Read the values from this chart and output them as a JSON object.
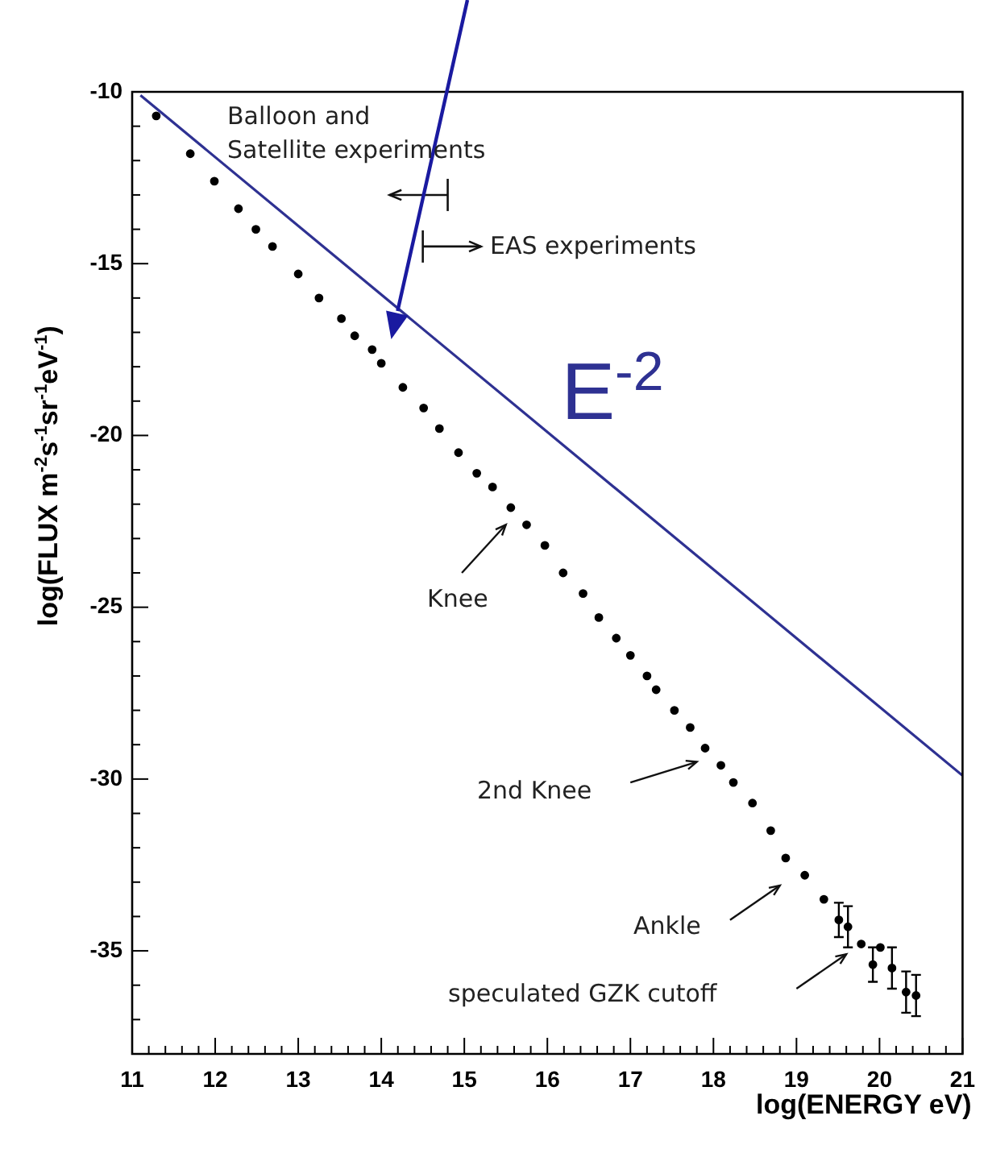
{
  "chart_data": {
    "type": "scatter",
    "xlabel": "log(ENERGY  eV)",
    "ylabel": "log(FLUX  m$^{-2}$s$^{-1}$sr$^{-1}$eV$^{-1}$)",
    "xlim": [
      11,
      21
    ],
    "ylim": [
      -38,
      -10
    ],
    "xticks": [
      11,
      {
        "value": 11.2,
        "label": null
      },
      {
        "value": 11.4,
        "label": null
      },
      {
        "value": 11.6,
        "label": null
      },
      {
        "value": 11.8,
        "label": null
      },
      12,
      {
        "value": 12.2,
        "label": null
      },
      {
        "value": 12.4,
        "label": null
      },
      {
        "value": 12.6,
        "label": null
      },
      {
        "value": 12.8,
        "label": null
      },
      13,
      {
        "value": 13.2,
        "label": null
      },
      {
        "value": 13.4,
        "label": null
      },
      {
        "value": 13.6,
        "label": null
      },
      {
        "value": 13.8,
        "label": null
      },
      14,
      {
        "value": 14.2,
        "label": null
      },
      {
        "value": 14.4,
        "label": null
      },
      {
        "value": 14.6,
        "label": null
      },
      {
        "value": 14.8,
        "label": null
      },
      15,
      {
        "value": 15.2,
        "label": null
      },
      {
        "value": 15.4,
        "label": null
      },
      {
        "value": 15.6,
        "label": null
      },
      {
        "value": 15.8,
        "label": null
      },
      16,
      {
        "value": 16.2,
        "label": null
      },
      {
        "value": 16.4,
        "label": null
      },
      {
        "value": 16.6,
        "label": null
      },
      {
        "value": 16.8,
        "label": null
      },
      17,
      {
        "value": 17.2,
        "label": null
      },
      {
        "value": 17.4,
        "label": null
      },
      {
        "value": 17.6,
        "label": null
      },
      {
        "value": 17.8,
        "label": null
      },
      18,
      {
        "value": 18.2,
        "label": null
      },
      {
        "value": 18.4,
        "label": null
      },
      {
        "value": 18.6,
        "label": null
      },
      {
        "value": 18.8,
        "label": null
      },
      19,
      {
        "value": 19.2,
        "label": null
      },
      {
        "value": 19.4,
        "label": null
      },
      {
        "value": 19.6,
        "label": null
      },
      {
        "value": 19.8,
        "label": null
      },
      20,
      {
        "value": 20.2,
        "label": null
      },
      {
        "value": 20.4,
        "label": null
      },
      {
        "value": 20.6,
        "label": null
      },
      {
        "value": 20.8,
        "label": null
      },
      21
    ],
    "yticks": [
      {
        "value": -37,
        "label": null
      },
      {
        "value": -36,
        "label": null
      },
      -35,
      {
        "value": -34,
        "label": null
      },
      {
        "value": -33,
        "label": null
      },
      {
        "value": -32,
        "label": null
      },
      {
        "value": -31,
        "label": null
      },
      -30,
      {
        "value": -29,
        "label": null
      },
      {
        "value": -28,
        "label": null
      },
      {
        "value": -27,
        "label": null
      },
      {
        "value": -26,
        "label": null
      },
      -25,
      {
        "value": -24,
        "label": null
      },
      {
        "value": -23,
        "label": null
      },
      {
        "value": -22,
        "label": null
      },
      {
        "value": -21,
        "label": null
      },
      -20,
      {
        "value": -19,
        "label": null
      },
      {
        "value": -18,
        "label": null
      },
      {
        "value": -17,
        "label": null
      },
      {
        "value": -16,
        "label": null
      },
      -15,
      {
        "value": -14,
        "label": null
      },
      {
        "value": -13,
        "label": null
      },
      {
        "value": -12,
        "label": null
      },
      {
        "value": -11,
        "label": null
      },
      -10
    ],
    "legend": false,
    "series": [
      {
        "color": "#000000",
        "marker": "circle",
        "x": [
          11.29,
          11.7,
          11.99,
          12.28,
          12.49,
          12.69,
          13.0,
          13.25,
          13.52,
          13.68,
          13.89,
          14.0,
          14.26,
          14.51,
          14.7,
          14.93,
          15.15,
          15.34,
          15.56,
          15.75,
          15.97,
          16.19,
          16.43,
          16.62,
          16.83,
          17.0,
          17.2,
          17.31,
          17.53,
          17.72,
          17.9,
          18.09,
          18.24,
          18.47,
          18.69,
          18.87,
          19.1,
          19.33,
          19.51,
          19.62,
          19.78,
          19.92,
          20.01,
          20.15,
          20.32,
          20.44
        ],
        "values": [
          -10.7,
          -11.8,
          -12.6,
          -13.4,
          -14.0,
          -14.5,
          -15.3,
          -16.0,
          -16.6,
          -17.1,
          -17.5,
          -17.9,
          -18.6,
          -19.2,
          -19.8,
          -20.5,
          -21.1,
          -21.5,
          -22.1,
          -22.6,
          -23.2,
          -24.0,
          -24.6,
          -25.3,
          -25.9,
          -26.4,
          -27.0,
          -27.4,
          -28.0,
          -28.5,
          -29.1,
          -29.6,
          -30.1,
          -30.7,
          -31.5,
          -32.3,
          -32.8,
          -33.5,
          -34.1,
          -34.3,
          -34.8,
          -35.4,
          -34.9,
          -35.5,
          -36.2,
          -36.3
        ],
        "errors": [
          null,
          null,
          null,
          null,
          null,
          null,
          null,
          null,
          null,
          null,
          null,
          null,
          null,
          null,
          null,
          null,
          null,
          null,
          null,
          null,
          null,
          null,
          null,
          null,
          null,
          null,
          null,
          null,
          null,
          null,
          null,
          null,
          null,
          null,
          null,
          null,
          null,
          null,
          0.5,
          0.6,
          null,
          0.5,
          null,
          0.6,
          0.6,
          0.6
        ]
      },
      {
        "type": "line",
        "name": "E$^{-2}$",
        "color": "#2e3192",
        "x": [
          11.1,
          21
        ],
        "values": [
          -10.1,
          -29.9
        ]
      }
    ],
    "annotations": [
      "Balloon and\nSatellite experiments",
      "EAS experiments",
      "Knee",
      "2nd Knee",
      "Ankle",
      "speculated GZK cutoff"
    ]
  }
}
